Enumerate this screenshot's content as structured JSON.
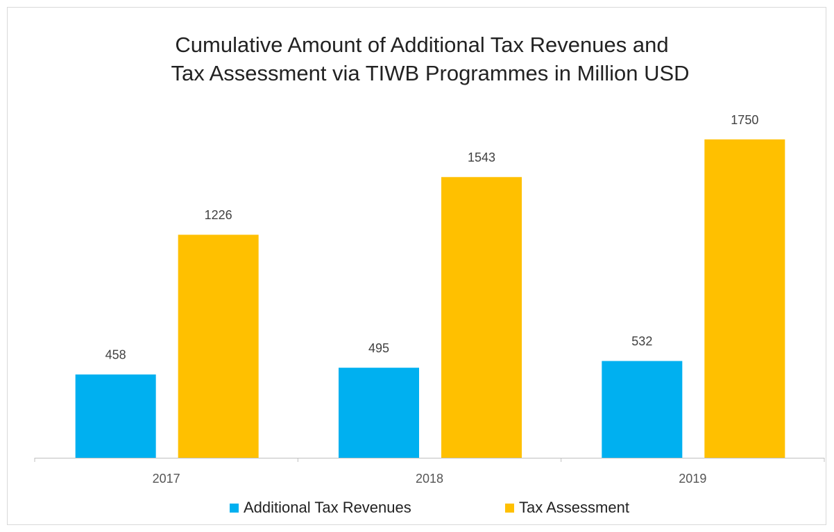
{
  "chart_data": {
    "type": "bar",
    "title": [
      "Cumulative Amount of Additional Tax Revenues and",
      "Tax Assessment via TIWB Programmes in Million USD"
    ],
    "categories": [
      "2017",
      "2018",
      "2019"
    ],
    "series": [
      {
        "name": "Additional Tax Revenues",
        "color": "#00b0f0",
        "values": [
          458,
          495,
          532
        ]
      },
      {
        "name": "Tax Assessment",
        "color": "#ffc000",
        "values": [
          1226,
          1543,
          1750
        ]
      }
    ],
    "legend": "bottom"
  }
}
